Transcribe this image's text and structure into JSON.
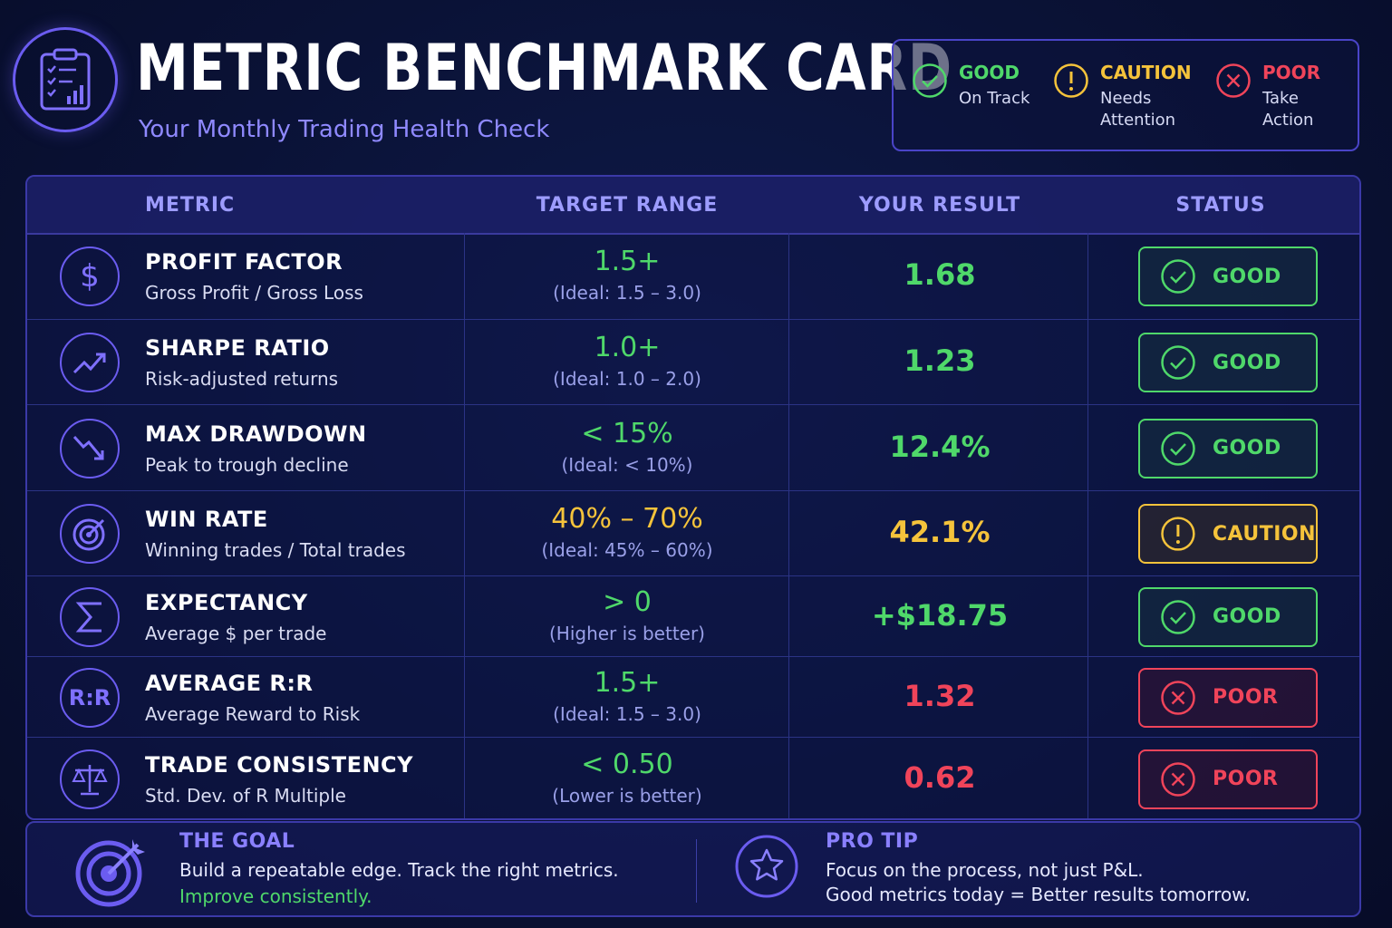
{
  "header": {
    "title": "METRIC BENCHMARK CARD",
    "subtitle": "Your Monthly Trading Health Check",
    "logo_icon": "clipboard-chart-icon"
  },
  "colors": {
    "good": "#4fd86a",
    "caution": "#f5c33b",
    "poor": "#f0445a",
    "accent": "#6b5cf0"
  },
  "legend": [
    {
      "label": "GOOD",
      "desc_line1": "On Track",
      "desc_line2": "",
      "icon": "check-circle-icon"
    },
    {
      "label": "CAUTION",
      "desc_line1": "Needs",
      "desc_line2": "Attention",
      "icon": "exclamation-circle-icon"
    },
    {
      "label": "POOR",
      "desc_line1": "Take",
      "desc_line2": "Action",
      "icon": "x-circle-icon"
    }
  ],
  "table": {
    "headers": [
      "METRIC",
      "TARGET RANGE",
      "YOUR RESULT",
      "STATUS"
    ],
    "rows": [
      {
        "icon": "dollar-icon",
        "name": "PROFIT FACTOR",
        "desc": "Gross Profit / Gross Loss",
        "target": "1.5+",
        "ideal": "(Ideal: 1.5 – 3.0)",
        "result": "1.68",
        "status": "GOOD"
      },
      {
        "icon": "trend-up-icon",
        "name": "SHARPE RATIO",
        "desc": "Risk-adjusted returns",
        "target": "1.0+",
        "ideal": "(Ideal: 1.0 – 2.0)",
        "result": "1.23",
        "status": "GOOD"
      },
      {
        "icon": "trend-down-icon",
        "name": "MAX DRAWDOWN",
        "desc": "Peak to trough decline",
        "target": "< 15%",
        "ideal": "(Ideal: < 10%)",
        "result": "12.4%",
        "status": "GOOD"
      },
      {
        "icon": "target-icon",
        "name": "WIN RATE",
        "desc": "Winning trades / Total trades",
        "target": "40% – 70%",
        "ideal": "(Ideal: 45% – 60%)",
        "result": "42.1%",
        "status": "CAUTION"
      },
      {
        "icon": "sigma-icon",
        "name": "EXPECTANCY",
        "desc": "Average $ per trade",
        "target": "> 0",
        "ideal": "(Higher is better)",
        "result": "+$18.75",
        "status": "GOOD"
      },
      {
        "icon": "rr-icon",
        "icon_text": "R:R",
        "name": "AVERAGE R:R",
        "desc": "Average Reward to Risk",
        "target": "1.5+",
        "ideal": "(Ideal: 1.5 – 3.0)",
        "result": "1.32",
        "status": "POOR"
      },
      {
        "icon": "scale-icon",
        "name": "TRADE CONSISTENCY",
        "desc": "Std. Dev. of R Multiple",
        "target": "< 0.50",
        "ideal": "(Lower is better)",
        "result": "0.62",
        "status": "POOR"
      }
    ]
  },
  "footer": {
    "goal": {
      "icon": "target-arrow-icon",
      "title": "THE GOAL",
      "line1": "Build a repeatable edge. Track the right metrics.",
      "line2": "Improve consistently."
    },
    "tip": {
      "icon": "star-icon",
      "title": "PRO TIP",
      "line1": "Focus on the process, not just P&L.",
      "line2": "Good metrics today = Better results tomorrow."
    }
  }
}
